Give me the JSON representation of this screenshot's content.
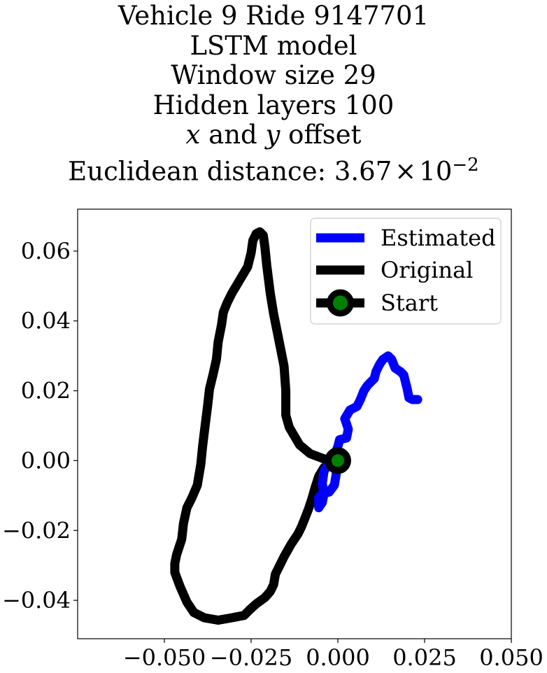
{
  "chart_data": {
    "type": "line",
    "title_lines": {
      "vehicle": "Vehicle 9 Ride 9147701",
      "model": "LSTM model",
      "window": "Window size 29",
      "hidden": "Hidden layers 100",
      "offset_x": "x",
      "offset_and": " and ",
      "offset_y": "y",
      "offset_rest": " offset",
      "distance_prefix": "Euclidean distance: ",
      "distance_mantissa": "3.67",
      "distance_times": "×",
      "distance_base": "10",
      "distance_exp": "−2"
    },
    "xlim": [
      -0.075,
      0.05
    ],
    "ylim": [
      -0.051,
      0.072
    ],
    "x_ticks": [
      -0.05,
      -0.025,
      0.0,
      0.025,
      0.05
    ],
    "x_tick_labels": [
      "−0.050",
      "−0.025",
      "0.000",
      "0.025",
      "0.050"
    ],
    "y_ticks": [
      -0.04,
      -0.02,
      0.0,
      0.02,
      0.04,
      0.06
    ],
    "y_tick_labels": [
      "−0.04",
      "−0.02",
      "0.00",
      "0.02",
      "0.04",
      "0.06"
    ],
    "grid": false,
    "legend_position": "top-right",
    "legend": [
      "Estimated",
      "Original",
      "Start"
    ],
    "series": [
      {
        "name": "Original",
        "color": "#000000",
        "points": [
          [
            0.0,
            0.0
          ],
          [
            -0.004,
            0.0005
          ],
          [
            -0.008,
            0.002
          ],
          [
            -0.011,
            0.0045
          ],
          [
            -0.014,
            0.0095
          ],
          [
            -0.015,
            0.013
          ],
          [
            -0.015,
            0.02
          ],
          [
            -0.0155,
            0.027
          ],
          [
            -0.0165,
            0.032
          ],
          [
            -0.0175,
            0.037
          ],
          [
            -0.0185,
            0.042
          ],
          [
            -0.0195,
            0.048
          ],
          [
            -0.0205,
            0.056
          ],
          [
            -0.021,
            0.061
          ],
          [
            -0.0215,
            0.0645
          ],
          [
            -0.0225,
            0.0655
          ],
          [
            -0.0235,
            0.065
          ],
          [
            -0.0245,
            0.063
          ],
          [
            -0.025,
            0.0595
          ],
          [
            -0.026,
            0.0555
          ],
          [
            -0.0275,
            0.053
          ],
          [
            -0.029,
            0.0505
          ],
          [
            -0.0305,
            0.048
          ],
          [
            -0.032,
            0.045
          ],
          [
            -0.033,
            0.0425
          ],
          [
            -0.0335,
            0.039
          ],
          [
            -0.0345,
            0.034
          ],
          [
            -0.035,
            0.029
          ],
          [
            -0.036,
            0.0245
          ],
          [
            -0.037,
            0.0205
          ],
          [
            -0.0375,
            0.016
          ],
          [
            -0.038,
            0.012
          ],
          [
            -0.0385,
            0.008
          ],
          [
            -0.039,
            0.004
          ],
          [
            -0.0395,
            -0.001
          ],
          [
            -0.0405,
            -0.007
          ],
          [
            -0.042,
            -0.0105
          ],
          [
            -0.0435,
            -0.0135
          ],
          [
            -0.0445,
            -0.018
          ],
          [
            -0.045,
            -0.0225
          ],
          [
            -0.0465,
            -0.027
          ],
          [
            -0.047,
            -0.0295
          ],
          [
            -0.047,
            -0.032
          ],
          [
            -0.0455,
            -0.036
          ],
          [
            -0.0435,
            -0.0405
          ],
          [
            -0.0415,
            -0.0435
          ],
          [
            -0.0385,
            -0.045
          ],
          [
            -0.0345,
            -0.0457
          ],
          [
            -0.0305,
            -0.045
          ],
          [
            -0.027,
            -0.0443
          ],
          [
            -0.0255,
            -0.0428
          ],
          [
            -0.0235,
            -0.041
          ],
          [
            -0.021,
            -0.0392
          ],
          [
            -0.0195,
            -0.0375
          ],
          [
            -0.0185,
            -0.0355
          ],
          [
            -0.018,
            -0.0325
          ],
          [
            -0.0165,
            -0.0295
          ],
          [
            -0.0155,
            -0.0275
          ],
          [
            -0.0135,
            -0.024
          ],
          [
            -0.0115,
            -0.021
          ],
          [
            -0.0105,
            -0.019
          ],
          [
            -0.0095,
            -0.0165
          ],
          [
            -0.0085,
            -0.014
          ],
          [
            -0.0075,
            -0.011
          ],
          [
            -0.0065,
            -0.0075
          ],
          [
            -0.0055,
            -0.0045
          ],
          [
            -0.004,
            -0.002
          ],
          [
            -0.002,
            -0.0008
          ],
          [
            0.0,
            0.0
          ]
        ]
      },
      {
        "name": "Estimated",
        "color": "#0000ff",
        "points": [
          [
            0.0,
            0.0
          ],
          [
            -0.0005,
            -0.004
          ],
          [
            -0.001,
            -0.007
          ],
          [
            -0.0025,
            -0.009
          ],
          [
            -0.0045,
            -0.0095
          ],
          [
            -0.0055,
            -0.0105
          ],
          [
            -0.0055,
            -0.0135
          ],
          [
            -0.0045,
            -0.012
          ],
          [
            -0.004,
            -0.0095
          ],
          [
            -0.0045,
            -0.0065
          ],
          [
            -0.004,
            -0.003
          ],
          [
            -0.0025,
            -0.0008
          ],
          [
            -0.001,
            0.0015
          ],
          [
            0.0,
            0.004
          ],
          [
            0.0005,
            0.006
          ],
          [
            0.0025,
            0.0065
          ],
          [
            0.003,
            0.009
          ],
          [
            0.002,
            0.012
          ],
          [
            0.0035,
            0.0145
          ],
          [
            0.0055,
            0.0155
          ],
          [
            0.0065,
            0.0175
          ],
          [
            0.0075,
            0.02
          ],
          [
            0.0085,
            0.0215
          ],
          [
            0.0095,
            0.0225
          ],
          [
            0.0105,
            0.0235
          ],
          [
            0.011,
            0.0255
          ],
          [
            0.012,
            0.0275
          ],
          [
            0.013,
            0.029
          ],
          [
            0.0145,
            0.03
          ],
          [
            0.0155,
            0.029
          ],
          [
            0.0165,
            0.0265
          ],
          [
            0.018,
            0.0255
          ],
          [
            0.019,
            0.0245
          ],
          [
            0.0195,
            0.0225
          ],
          [
            0.02,
            0.0205
          ],
          [
            0.0205,
            0.018
          ],
          [
            0.0215,
            0.0175
          ],
          [
            0.023,
            0.0175
          ]
        ]
      },
      {
        "name": "Start",
        "marker_edge": "#000000",
        "marker_face": "#008000",
        "points": [
          [
            0.0,
            0.0
          ]
        ]
      }
    ]
  }
}
